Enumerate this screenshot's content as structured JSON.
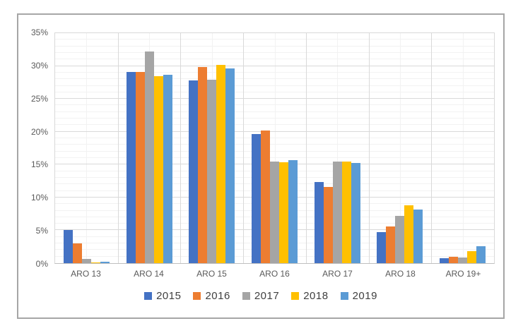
{
  "chart_data": {
    "type": "bar",
    "title": "",
    "xlabel": "",
    "ylabel": "",
    "categories": [
      "ARO 13",
      "ARO 14",
      "ARO 15",
      "ARO 16",
      "ARO 17",
      "ARO 18",
      "ARO 19+"
    ],
    "series": [
      {
        "name": "2015",
        "color": "#4472C4",
        "values": [
          5.1,
          29.1,
          27.8,
          19.7,
          12.4,
          4.7,
          0.8
        ]
      },
      {
        "name": "2016",
        "color": "#ED7D31",
        "values": [
          3.0,
          29.1,
          29.8,
          20.2,
          11.6,
          5.6,
          1.0
        ]
      },
      {
        "name": "2017",
        "color": "#A5A5A5",
        "values": [
          0.6,
          32.2,
          27.9,
          15.5,
          15.5,
          7.2,
          0.9
        ]
      },
      {
        "name": "2018",
        "color": "#FFC000",
        "values": [
          0.1,
          28.5,
          30.2,
          15.4,
          15.5,
          8.8,
          1.8
        ]
      },
      {
        "name": "2019",
        "color": "#5B9BD5",
        "values": [
          0.2,
          28.7,
          29.6,
          15.7,
          15.2,
          8.2,
          2.6
        ]
      }
    ],
    "ylim": [
      0,
      35
    ],
    "y_tick_step": 5,
    "y_minor_step": 1,
    "y_tick_labels": [
      "0%",
      "5%",
      "10%",
      "15%",
      "20%",
      "25%",
      "30%",
      "35%"
    ],
    "grid": true,
    "legend_position": "bottom"
  },
  "colors": {
    "grid_major": "#D9D9D9",
    "grid_minor": "#F2F2F2",
    "axis_text": "#595959",
    "legend_text": "#404040",
    "frame_border": "#A6A6A6",
    "background": "#FFFFFF"
  }
}
